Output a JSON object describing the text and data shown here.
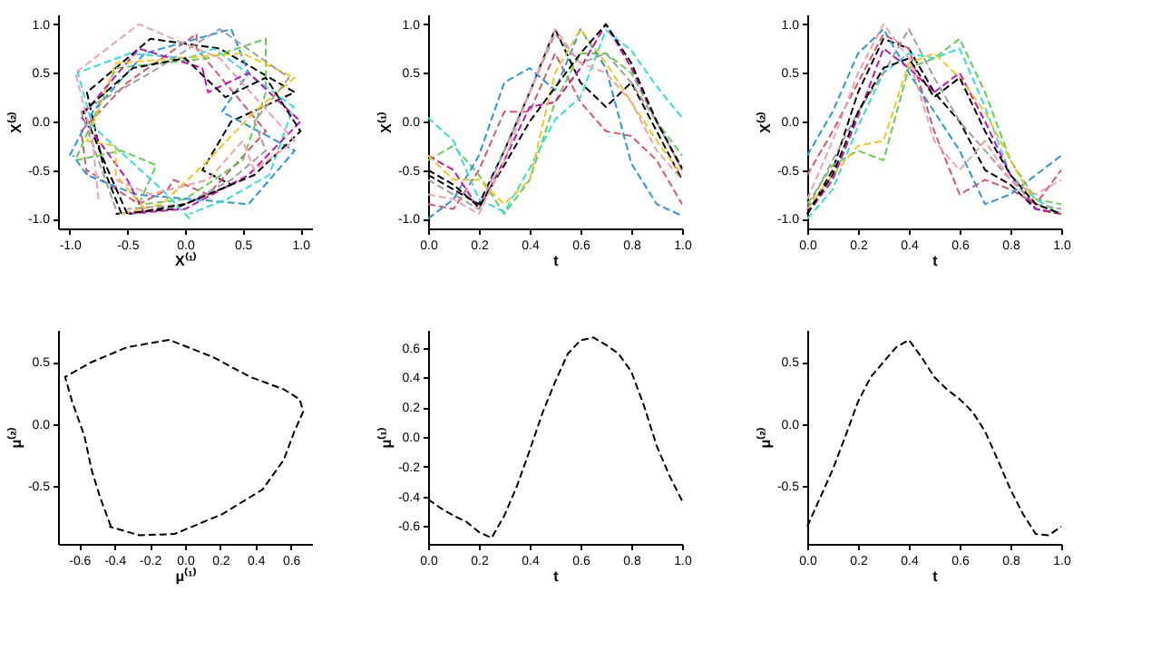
{
  "chart_data": [
    {
      "type": "line",
      "xlabel": "X⁽¹⁾",
      "ylabel": "X⁽²⁾",
      "xlim": [
        -1.1,
        1.1
      ],
      "ylim": [
        -1.1,
        1.1
      ],
      "xticks": [
        {
          "value": -1,
          "label": "-1.0"
        },
        -0.5,
        {
          "value": 0,
          "label": "0.0"
        },
        0.5,
        {
          "value": 1,
          "label": "1.0"
        }
      ],
      "yticks": [
        {
          "value": -1,
          "label": "-1.0"
        },
        -0.5,
        {
          "value": 0,
          "label": "0.0"
        },
        0.5,
        {
          "value": 1,
          "label": "1.0"
        }
      ],
      "grid": false,
      "legend": false,
      "line_style": "dashed",
      "series": [
        {
          "color": "#000000",
          "x": [
            -0.55,
            -0.7,
            -0.85,
            -0.3,
            0.3,
            0.95,
            0.4,
            0.15,
            0.4,
            -0.1,
            -0.6
          ],
          "values": [
            -0.95,
            -0.5,
            0.3,
            0.85,
            0.75,
            0.3,
            0.0,
            -0.5,
            -0.65,
            -0.9,
            -0.95
          ]
        },
        {
          "color": "#df536b",
          "x": [
            -0.85,
            -0.9,
            -0.5,
            0.1,
            0.1,
            0.7,
            0.2,
            -0.1,
            -0.15,
            -0.4,
            -0.85
          ],
          "values": [
            -0.55,
            -0.1,
            0.4,
            0.9,
            0.75,
            -0.1,
            -0.75,
            -0.6,
            -0.7,
            -0.85,
            -0.5
          ]
        },
        {
          "color": "#61d04f",
          "x": [
            -0.4,
            -0.25,
            -0.55,
            -0.95,
            -0.6,
            0.2,
            0.7,
            0.7,
            0.5,
            0.0,
            -0.35
          ],
          "values": [
            -0.85,
            -0.45,
            -0.3,
            -0.4,
            0.55,
            0.65,
            0.85,
            0.3,
            -0.4,
            -0.8,
            -0.85
          ]
        },
        {
          "color": "#2297e6",
          "x": [
            -1.0,
            -0.8,
            -0.35,
            0.4,
            0.55,
            0.32,
            0.95,
            0.55,
            -0.43,
            -0.85,
            -0.97
          ],
          "values": [
            -0.35,
            0.1,
            0.7,
            0.95,
            0.5,
            0.1,
            -0.3,
            -0.85,
            -0.75,
            -0.55,
            -0.35
          ]
        },
        {
          "color": "#28e2e5",
          "x": [
            0.04,
            -0.2,
            -0.8,
            -0.93,
            -0.48,
            0.02,
            0.25,
            0.94,
            0.73,
            0.36,
            0.04
          ],
          "values": [
            -1.0,
            -0.7,
            -0.05,
            0.5,
            0.7,
            0.65,
            0.75,
            0.15,
            -0.55,
            -0.8,
            -0.95
          ]
        },
        {
          "color": "#cd0bbc",
          "x": [
            -0.35,
            -0.5,
            -0.9,
            -0.4,
            0.15,
            0.2,
            0.55,
            1.0,
            0.55,
            0.0,
            -0.5
          ],
          "values": [
            -0.95,
            -0.6,
            0.05,
            0.75,
            0.55,
            0.3,
            0.5,
            0.0,
            -0.55,
            -0.9,
            -0.95
          ]
        },
        {
          "color": "#f5c710",
          "x": [
            -0.35,
            -0.6,
            -0.6,
            -0.85,
            -0.6,
            0.5,
            0.95,
            0.6,
            0.2,
            -0.2,
            -0.55
          ],
          "values": [
            -0.9,
            -0.55,
            -0.25,
            -0.2,
            0.6,
            0.7,
            0.45,
            0.1,
            -0.4,
            -0.85,
            -0.95
          ]
        },
        {
          "color": "#9e9e9e",
          "x": [
            -0.6,
            -0.75,
            -0.9,
            -0.3,
            0.3,
            0.9,
            0.6,
            0.7,
            0.4,
            0.0,
            -0.5
          ],
          "values": [
            -0.9,
            -0.4,
            0.1,
            0.5,
            0.95,
            0.45,
            0.0,
            -0.3,
            -0.6,
            -0.85,
            -0.9
          ]
        },
        {
          "color": "#000000",
          "x": [
            -0.5,
            -0.65,
            -0.88,
            -0.45,
            0.0,
            0.35,
            0.7,
            1.0,
            0.6,
            0.0,
            -0.48
          ],
          "values": [
            -0.95,
            -0.55,
            0.1,
            0.55,
            0.65,
            0.25,
            0.45,
            -0.1,
            -0.55,
            -0.85,
            -0.95
          ]
        },
        {
          "color": "#f4a0a8",
          "x": [
            -0.75,
            -0.8,
            -0.95,
            -0.4,
            0.3,
            0.95,
            0.6,
            0.5,
            0.2,
            -0.3,
            -0.6
          ],
          "values": [
            -0.8,
            -0.2,
            0.5,
            1.0,
            0.65,
            -0.2,
            -0.5,
            -0.2,
            -0.6,
            -0.75,
            -0.6
          ]
        }
      ]
    },
    {
      "type": "line",
      "xlabel": "t",
      "ylabel": "X⁽¹⁾",
      "x": [
        0,
        0.1,
        0.2,
        0.3,
        0.4,
        0.5,
        0.6,
        0.7,
        0.8,
        0.9,
        1.0
      ],
      "xlim": [
        0,
        1
      ],
      "ylim": [
        -1.1,
        1.1
      ],
      "xticks": [
        {
          "value": 0,
          "label": "0.0"
        },
        0.2,
        0.4,
        0.6,
        0.8,
        {
          "value": 1,
          "label": "1.0"
        }
      ],
      "yticks": [
        {
          "value": -1,
          "label": "-1.0"
        },
        -0.5,
        {
          "value": 0,
          "label": "0.0"
        },
        0.5,
        {
          "value": 1,
          "label": "1.0"
        }
      ],
      "grid": false,
      "legend": false,
      "line_style": "dashed",
      "series": [
        {
          "color": "#000000",
          "values": [
            -0.55,
            -0.7,
            -0.85,
            -0.3,
            0.3,
            0.95,
            0.4,
            0.15,
            0.4,
            -0.1,
            -0.6
          ]
        },
        {
          "color": "#df536b",
          "values": [
            -0.85,
            -0.9,
            -0.5,
            0.1,
            0.1,
            0.7,
            0.2,
            -0.1,
            -0.15,
            -0.4,
            -0.85
          ]
        },
        {
          "color": "#61d04f",
          "values": [
            -0.4,
            -0.25,
            -0.55,
            -0.95,
            -0.6,
            0.2,
            0.7,
            0.7,
            0.5,
            0.0,
            -0.35
          ]
        },
        {
          "color": "#2297e6",
          "values": [
            -1.0,
            -0.8,
            -0.35,
            0.4,
            0.55,
            0.32,
            0.95,
            0.55,
            -0.43,
            -0.85,
            -0.97
          ]
        },
        {
          "color": "#28e2e5",
          "values": [
            0.04,
            -0.2,
            -0.8,
            -0.93,
            -0.48,
            0.02,
            0.25,
            0.94,
            0.73,
            0.36,
            0.04
          ]
        },
        {
          "color": "#cd0bbc",
          "values": [
            -0.35,
            -0.5,
            -0.9,
            -0.4,
            0.15,
            0.2,
            0.55,
            1.0,
            0.55,
            0.0,
            -0.5
          ]
        },
        {
          "color": "#f5c710",
          "values": [
            -0.35,
            -0.6,
            -0.6,
            -0.85,
            -0.6,
            0.5,
            0.95,
            0.6,
            0.2,
            -0.2,
            -0.55
          ]
        },
        {
          "color": "#9e9e9e",
          "values": [
            -0.6,
            -0.75,
            -0.9,
            -0.3,
            0.3,
            0.9,
            0.6,
            0.7,
            0.4,
            0.0,
            -0.5
          ]
        },
        {
          "color": "#000000",
          "values": [
            -0.5,
            -0.65,
            -0.88,
            -0.45,
            0.0,
            0.35,
            0.7,
            1.0,
            0.6,
            0.0,
            -0.48
          ]
        },
        {
          "color": "#f4a0a8",
          "values": [
            -0.75,
            -0.8,
            -0.95,
            -0.4,
            0.3,
            0.95,
            0.6,
            0.5,
            0.2,
            -0.3,
            -0.6
          ]
        }
      ]
    },
    {
      "type": "line",
      "xlabel": "t",
      "ylabel": "X⁽²⁾",
      "x": [
        0,
        0.1,
        0.2,
        0.3,
        0.4,
        0.5,
        0.6,
        0.7,
        0.8,
        0.9,
        1.0
      ],
      "xlim": [
        0,
        1
      ],
      "ylim": [
        -1.1,
        1.1
      ],
      "xticks": [
        {
          "value": 0,
          "label": "0.0"
        },
        0.2,
        0.4,
        0.6,
        0.8,
        {
          "value": 1,
          "label": "1.0"
        }
      ],
      "yticks": [
        {
          "value": -1,
          "label": "-1.0"
        },
        -0.5,
        {
          "value": 0,
          "label": "0.0"
        },
        0.5,
        {
          "value": 1,
          "label": "1.0"
        }
      ],
      "grid": false,
      "legend": false,
      "line_style": "dashed",
      "series": [
        {
          "color": "#000000",
          "values": [
            -0.95,
            -0.5,
            0.3,
            0.85,
            0.75,
            0.3,
            0.0,
            -0.5,
            -0.65,
            -0.9,
            -0.95
          ]
        },
        {
          "color": "#df536b",
          "values": [
            -0.55,
            -0.1,
            0.4,
            0.9,
            0.75,
            -0.1,
            -0.75,
            -0.6,
            -0.7,
            -0.85,
            -0.5
          ]
        },
        {
          "color": "#61d04f",
          "values": [
            -0.85,
            -0.45,
            -0.3,
            -0.4,
            0.55,
            0.65,
            0.85,
            0.3,
            -0.4,
            -0.8,
            -0.85
          ]
        },
        {
          "color": "#2297e6",
          "values": [
            -0.35,
            0.1,
            0.7,
            0.95,
            0.5,
            0.1,
            -0.3,
            -0.85,
            -0.75,
            -0.55,
            -0.35
          ]
        },
        {
          "color": "#28e2e5",
          "values": [
            -1.0,
            -0.7,
            -0.05,
            0.5,
            0.7,
            0.65,
            0.75,
            0.15,
            -0.55,
            -0.8,
            -0.95
          ]
        },
        {
          "color": "#cd0bbc",
          "values": [
            -0.95,
            -0.6,
            0.05,
            0.75,
            0.55,
            0.3,
            0.5,
            0.0,
            -0.55,
            -0.9,
            -0.95
          ]
        },
        {
          "color": "#f5c710",
          "values": [
            -0.9,
            -0.55,
            -0.25,
            -0.2,
            0.6,
            0.7,
            0.45,
            0.1,
            -0.4,
            -0.85,
            -0.95
          ]
        },
        {
          "color": "#9e9e9e",
          "values": [
            -0.9,
            -0.4,
            0.1,
            0.5,
            0.95,
            0.45,
            0.0,
            -0.3,
            -0.6,
            -0.85,
            -0.9
          ]
        },
        {
          "color": "#000000",
          "values": [
            -0.95,
            -0.55,
            0.1,
            0.55,
            0.65,
            0.25,
            0.45,
            -0.1,
            -0.55,
            -0.85,
            -0.95
          ]
        },
        {
          "color": "#f4a0a8",
          "values": [
            -0.8,
            -0.2,
            0.5,
            1.0,
            0.65,
            -0.2,
            -0.5,
            -0.2,
            -0.6,
            -0.75,
            -0.6
          ]
        }
      ]
    },
    {
      "type": "line",
      "xlabel": "μ⁽¹⁾",
      "ylabel": "μ⁽²⁾",
      "xlim": [
        -0.72,
        0.72
      ],
      "ylim": [
        -0.97,
        0.76
      ],
      "xticks": [
        -0.6,
        -0.4,
        -0.2,
        {
          "value": 0,
          "label": "0.0"
        },
        0.2,
        0.4,
        0.6
      ],
      "yticks": [
        -0.5,
        {
          "value": 0,
          "label": "0.0"
        },
        0.5
      ],
      "grid": false,
      "legend": false,
      "line_style": "dashed",
      "series": [
        {
          "color": "#000000",
          "x": [
            -0.42,
            -0.48,
            -0.53,
            -0.57,
            -0.64,
            -0.68,
            -0.53,
            -0.33,
            -0.09,
            0.16,
            0.37,
            0.56,
            0.65,
            0.67,
            0.62,
            0.56,
            0.44,
            0.21,
            -0.06,
            -0.26,
            -0.43
          ],
          "values": [
            -0.83,
            -0.6,
            -0.37,
            -0.1,
            0.18,
            0.38,
            0.5,
            0.62,
            0.68,
            0.54,
            0.38,
            0.28,
            0.2,
            0.1,
            -0.06,
            -0.29,
            -0.53,
            -0.73,
            -0.89,
            -0.9,
            -0.83
          ]
        }
      ]
    },
    {
      "type": "line",
      "xlabel": "t",
      "ylabel": "μ⁽¹⁾",
      "x": [
        0,
        0.05,
        0.1,
        0.15,
        0.2,
        0.25,
        0.3,
        0.35,
        0.4,
        0.45,
        0.5,
        0.55,
        0.6,
        0.65,
        0.7,
        0.75,
        0.8,
        0.85,
        0.9,
        0.95,
        1.0
      ],
      "xlim": [
        0,
        1
      ],
      "ylim": [
        -0.72,
        0.72
      ],
      "xticks": [
        {
          "value": 0,
          "label": "0.0"
        },
        0.2,
        0.4,
        0.6,
        0.8,
        {
          "value": 1,
          "label": "1.0"
        }
      ],
      "yticks": [
        -0.6,
        -0.4,
        -0.2,
        {
          "value": 0,
          "label": "0.0"
        },
        0.2,
        0.4,
        0.6
      ],
      "grid": false,
      "legend": false,
      "line_style": "dashed",
      "series": [
        {
          "color": "#000000",
          "values": [
            -0.42,
            -0.48,
            -0.53,
            -0.57,
            -0.64,
            -0.68,
            -0.53,
            -0.33,
            -0.09,
            0.16,
            0.37,
            0.56,
            0.65,
            0.67,
            0.62,
            0.56,
            0.44,
            0.21,
            -0.06,
            -0.26,
            -0.43
          ]
        }
      ]
    },
    {
      "type": "line",
      "xlabel": "t",
      "ylabel": "μ⁽²⁾",
      "x": [
        0,
        0.05,
        0.1,
        0.15,
        0.2,
        0.25,
        0.3,
        0.35,
        0.4,
        0.45,
        0.5,
        0.55,
        0.6,
        0.65,
        0.7,
        0.75,
        0.8,
        0.85,
        0.9,
        0.95,
        1.0
      ],
      "xlim": [
        0,
        1
      ],
      "ylim": [
        -0.97,
        0.76
      ],
      "xticks": [
        {
          "value": 0,
          "label": "0.0"
        },
        0.2,
        0.4,
        0.6,
        0.8,
        {
          "value": 1,
          "label": "1.0"
        }
      ],
      "yticks": [
        -0.5,
        {
          "value": 0,
          "label": "0.0"
        },
        0.5
      ],
      "grid": false,
      "legend": false,
      "line_style": "dashed",
      "series": [
        {
          "color": "#000000",
          "values": [
            -0.83,
            -0.6,
            -0.37,
            -0.1,
            0.18,
            0.38,
            0.5,
            0.62,
            0.68,
            0.54,
            0.38,
            0.28,
            0.2,
            0.1,
            -0.06,
            -0.29,
            -0.53,
            -0.73,
            -0.89,
            -0.9,
            -0.83
          ]
        }
      ]
    }
  ]
}
